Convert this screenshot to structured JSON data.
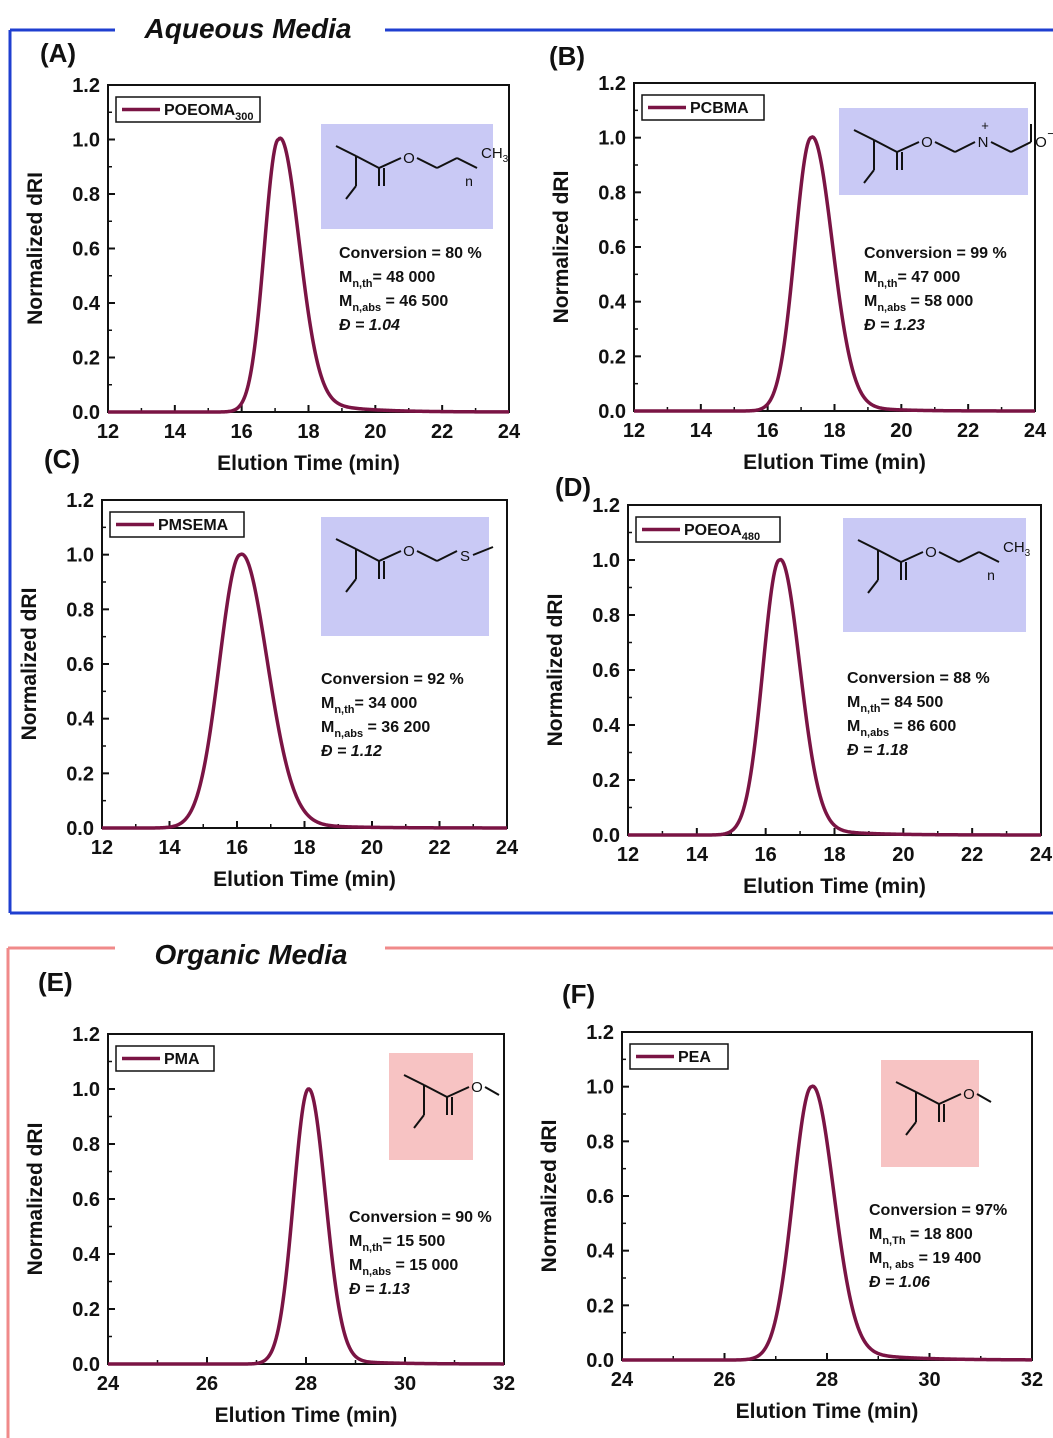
{
  "sections": [
    {
      "title": "Aqueous Media",
      "color": "#1f3fd0"
    },
    {
      "title": "Organic Media",
      "color": "#f08a8a"
    }
  ],
  "colors": {
    "trace": "#7a1444",
    "inset_aqueous": "#c9c9f5",
    "inset_organic": "#f7c3c3"
  },
  "chart_data": [
    {
      "panel": "(A)",
      "type": "line",
      "series_name": "POEOMA",
      "series_sub": "300",
      "xlabel": "Elution Time (min)",
      "ylabel": "Normalized dRI",
      "xlim": [
        12,
        24
      ],
      "ylim": [
        0,
        1.2
      ],
      "xticks": [
        "12",
        "14",
        "16",
        "18",
        "20",
        "22",
        "24"
      ],
      "yticks": [
        "0.0",
        "0.2",
        "0.4",
        "0.6",
        "0.8",
        "1.0",
        "1.2"
      ],
      "peak": 17.1,
      "sigma_left": 0.42,
      "sigma_right": 0.6,
      "tail": 0.09,
      "tail_decay": 1.2,
      "annotations": [
        {
          "label": "Conversion",
          "sub": "",
          "value": " = 80 %"
        },
        {
          "label": "M",
          "sub": "n,th",
          "value": "= 48 000"
        },
        {
          "label": "M",
          "sub": "n,abs",
          "value": " = 46 500"
        },
        {
          "label": "Đ",
          "sub": "",
          "value": " = 1.04"
        }
      ],
      "structure": {
        "pendant": "O",
        "tail": "CH",
        "tail_sub": "3",
        "rep": "n"
      }
    },
    {
      "panel": "(B)",
      "type": "line",
      "series_name": "PCBMA",
      "series_sub": "",
      "xlabel": "Elution Time (min)",
      "ylabel": "Normalized dRI",
      "xlim": [
        12,
        24
      ],
      "ylim": [
        0,
        1.2
      ],
      "xticks": [
        "12",
        "14",
        "16",
        "18",
        "20",
        "22",
        "24"
      ],
      "yticks": [
        "0.0",
        "0.2",
        "0.4",
        "0.6",
        "0.8",
        "1.0",
        "1.2"
      ],
      "peak": 17.3,
      "sigma_left": 0.48,
      "sigma_right": 0.62,
      "tail": 0.06,
      "tail_decay": 1.0,
      "annotations": [
        {
          "label": "Conversion",
          "sub": "",
          "value": " = 99 %"
        },
        {
          "label": "M",
          "sub": "n,th",
          "value": "= 47 000"
        },
        {
          "label": "M",
          "sub": "n,abs",
          "value": " = 58 000"
        },
        {
          "label": "Đ",
          "sub": "",
          "value": " = 1.23"
        }
      ],
      "structure": {
        "pendant": "O",
        "nitrogen": "N",
        "charge_plus": "+",
        "oxygen_minus": "O",
        "charge_minus": "−"
      }
    },
    {
      "panel": "(C)",
      "type": "line",
      "series_name": "PMSEMA",
      "series_sub": "",
      "xlabel": "Elution Time (min)",
      "ylabel": "Normalized dRI",
      "xlim": [
        12,
        24
      ],
      "ylim": [
        0,
        1.2
      ],
      "xticks": [
        "12",
        "14",
        "16",
        "18",
        "20",
        "22",
        "24"
      ],
      "yticks": [
        "0.0",
        "0.2",
        "0.4",
        "0.6",
        "0.8",
        "1.0",
        "1.2"
      ],
      "peak": 16.1,
      "sigma_left": 0.62,
      "sigma_right": 0.78,
      "tail": 0.04,
      "tail_decay": 1.4,
      "annotations": [
        {
          "label": "Conversion",
          "sub": "",
          "value": " = 92 %"
        },
        {
          "label": "M",
          "sub": "n,th",
          "value": "= 34 000"
        },
        {
          "label": "M",
          "sub": "n,abs",
          "value": " = 36 200"
        },
        {
          "label": "Đ",
          "sub": "",
          "value": " = 1.12"
        }
      ],
      "structure": {
        "pendant": "O",
        "sulfur": "S"
      }
    },
    {
      "panel": "(D)",
      "type": "line",
      "series_name": "POEOA",
      "series_sub": "480",
      "xlabel": "Elution Time (min)",
      "ylabel": "Normalized dRI",
      "xlim": [
        12,
        24
      ],
      "ylim": [
        0,
        1.2
      ],
      "xticks": [
        "12",
        "14",
        "16",
        "18",
        "20",
        "22",
        "24"
      ],
      "yticks": [
        "0.0",
        "0.2",
        "0.4",
        "0.6",
        "0.8",
        "1.0",
        "1.2"
      ],
      "peak": 16.4,
      "sigma_left": 0.48,
      "sigma_right": 0.58,
      "tail": 0.05,
      "tail_decay": 1.2,
      "annotations": [
        {
          "label": "Conversion",
          "sub": "",
          "value": " = 88 %"
        },
        {
          "label": "M",
          "sub": "n,th",
          "value": "= 84 500"
        },
        {
          "label": "M",
          "sub": "n,abs",
          "value": " = 86 600"
        },
        {
          "label": "Đ",
          "sub": "",
          "value": " = 1.18"
        }
      ],
      "structure": {
        "pendant": "O",
        "tail": "CH",
        "tail_sub": "3",
        "rep": "n"
      }
    },
    {
      "panel": "(E)",
      "type": "line",
      "series_name": "PMA",
      "series_sub": "",
      "xlabel": "Elution Time (min)",
      "ylabel": "Normalized dRI",
      "xlim": [
        24,
        32
      ],
      "ylim": [
        0,
        1.2
      ],
      "xticks": [
        "24",
        "26",
        "28",
        "30",
        "32"
      ],
      "yticks": [
        "0.0",
        "0.2",
        "0.4",
        "0.6",
        "0.8",
        "1.0",
        "1.2"
      ],
      "peak": 28.05,
      "sigma_left": 0.3,
      "sigma_right": 0.34,
      "tail": 0.03,
      "tail_decay": 0.8,
      "annotations": [
        {
          "label": "Conversion",
          "sub": "",
          "value": " = 90 %"
        },
        {
          "label": "M",
          "sub": "n,th",
          "value": "= 15 500"
        },
        {
          "label": "M",
          "sub": "n,abs",
          "value": " = 15 000"
        },
        {
          "label": "Đ",
          "sub": "",
          "value": " = 1.13"
        }
      ],
      "structure": {
        "pendant": "O"
      }
    },
    {
      "panel": "(F)",
      "type": "line",
      "series_name": "PEA",
      "series_sub": "",
      "xlabel": "Elution Time (min)",
      "ylabel": "Normalized dRI",
      "xlim": [
        24,
        32
      ],
      "ylim": [
        0,
        1.2
      ],
      "xticks": [
        "24",
        "26",
        "28",
        "30",
        "32"
      ],
      "yticks": [
        "0.0",
        "0.2",
        "0.4",
        "0.6",
        "0.8",
        "1.0",
        "1.2"
      ],
      "peak": 27.7,
      "sigma_left": 0.36,
      "sigma_right": 0.42,
      "tail": 0.07,
      "tail_decay": 0.9,
      "annotations": [
        {
          "label": "Conversion",
          "sub": "",
          "value": " = 97%"
        },
        {
          "label": "M",
          "sub": "n,Th",
          "value": " = 18 800"
        },
        {
          "label": "M",
          "sub": "n, abs",
          "value": " = 19 400"
        },
        {
          "label": "Đ",
          "sub": "",
          "value": " =  1.06"
        }
      ],
      "structure": {
        "pendant": "O"
      }
    }
  ]
}
